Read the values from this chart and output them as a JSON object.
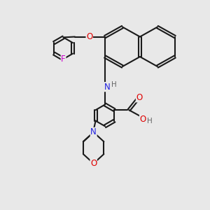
{
  "bg_color": "#e8e8e8",
  "bond_color": "#1a1a1a",
  "atom_colors": {
    "O": "#e00000",
    "N": "#2020e0",
    "F": "#cc00cc",
    "H": "#666666",
    "C": "#1a1a1a"
  },
  "font_size": 8.5,
  "line_width": 1.5
}
